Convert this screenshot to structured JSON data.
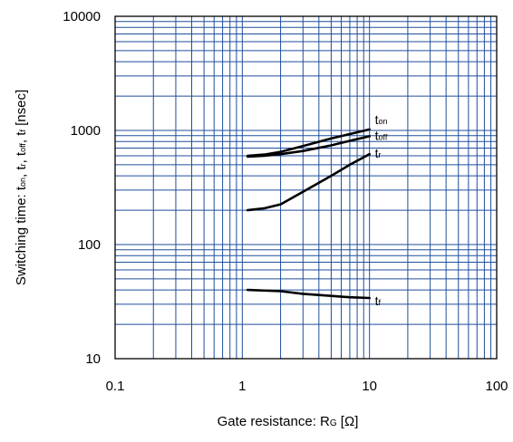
{
  "chart_data": {
    "type": "line",
    "x_scale": "log",
    "y_scale": "log",
    "xlim": [
      0.1,
      100
    ],
    "ylim": [
      10,
      10000
    ],
    "grid": true,
    "grid_color": "#1f4e9c",
    "line_color": "#000000",
    "x_ticks": [
      "0.1",
      "1",
      "10",
      "100"
    ],
    "y_ticks": [
      "10",
      "100",
      "1000",
      "10000"
    ],
    "ylabel": {
      "prefix": "Switching time:  t",
      "on": "on",
      "sep1": ", t",
      "r": "r",
      "sep2": ", t",
      "off": "off",
      "sep3": ", t",
      "f": "f",
      "suffix": "  [nsec]"
    },
    "xlabel": {
      "prefix": "Gate resistance: R",
      "sub": "G",
      "suffix": " [Ω]"
    },
    "series": [
      {
        "name": "t",
        "sub": "on",
        "x": [
          1.1,
          1.5,
          2,
          3,
          5,
          7,
          10
        ],
        "y": [
          600,
          615,
          650,
          730,
          850,
          930,
          1020
        ]
      },
      {
        "name": "t",
        "sub": "off",
        "x": [
          1.1,
          1.5,
          2,
          3,
          5,
          7,
          10
        ],
        "y": [
          590,
          600,
          620,
          660,
          740,
          810,
          890
        ]
      },
      {
        "name": "t",
        "sub": "r",
        "x": [
          1.1,
          1.5,
          2,
          3,
          5,
          7,
          10
        ],
        "y": [
          200,
          208,
          225,
          290,
          400,
          500,
          620
        ]
      },
      {
        "name": "t",
        "sub": "f",
        "x": [
          1.1,
          2,
          3,
          5,
          7,
          10
        ],
        "y": [
          40,
          39,
          37,
          35.5,
          34.5,
          34
        ]
      }
    ]
  }
}
